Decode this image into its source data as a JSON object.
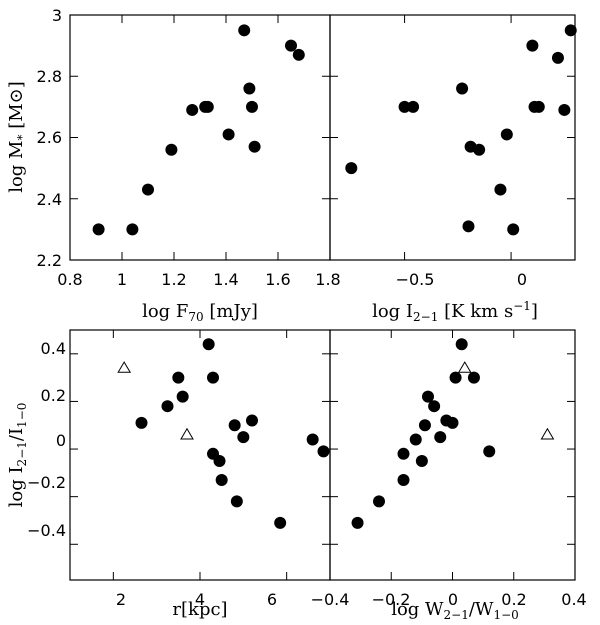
{
  "chart_data": [
    {
      "type": "scatter",
      "xlim": [
        0.8,
        1.8
      ],
      "ylim": [
        2.2,
        3.0
      ],
      "xticks": [
        "0.8",
        "1",
        "1.2",
        "1.4",
        "1.6",
        "1.8"
      ],
      "yticks": [
        "2.2",
        "2.4",
        "2.6",
        "2.8",
        "3"
      ],
      "xlabel": "log F70 [mJy]",
      "ylabel": "log M* [M⊙]",
      "series": [
        {
          "marker": "filled-circle",
          "points": [
            [
              0.91,
              2.3
            ],
            [
              1.04,
              2.3
            ],
            [
              1.1,
              2.43
            ],
            [
              1.19,
              2.56
            ],
            [
              1.27,
              2.69
            ],
            [
              1.32,
              2.7
            ],
            [
              1.33,
              2.7
            ],
            [
              1.41,
              2.61
            ],
            [
              1.47,
              2.95
            ],
            [
              1.49,
              2.76
            ],
            [
              1.5,
              2.7
            ],
            [
              1.51,
              2.57
            ],
            [
              1.65,
              2.9
            ],
            [
              1.68,
              2.87
            ]
          ]
        }
      ]
    },
    {
      "type": "scatter",
      "xlim": [
        -0.85,
        0.3
      ],
      "ylim": [
        2.2,
        3.0
      ],
      "xticks": [
        "−0.5",
        "0"
      ],
      "yticks": [],
      "xlabel": "log I2−1 [K km s−1]",
      "ylabel": "",
      "series": [
        {
          "marker": "filled-circle",
          "points": [
            [
              -0.75,
              2.5
            ],
            [
              -0.5,
              2.7
            ],
            [
              -0.46,
              2.7
            ],
            [
              -0.23,
              2.76
            ],
            [
              -0.19,
              2.57
            ],
            [
              -0.15,
              2.56
            ],
            [
              -0.2,
              2.31
            ],
            [
              -0.05,
              2.43
            ],
            [
              -0.02,
              2.61
            ],
            [
              0.01,
              2.3
            ],
            [
              0.1,
              2.9
            ],
            [
              0.11,
              2.7
            ],
            [
              0.13,
              2.7
            ],
            [
              0.22,
              2.86
            ],
            [
              0.25,
              2.69
            ],
            [
              0.28,
              2.95
            ]
          ]
        }
      ]
    },
    {
      "type": "scatter",
      "xlim": [
        1.0,
        7.0
      ],
      "ylim": [
        -0.55,
        0.5
      ],
      "xticks": [
        "2",
        "4",
        "6"
      ],
      "yticks": [
        "−0.4",
        "−0.2",
        "0",
        "0.2",
        "0.4"
      ],
      "xlabel": "r[kpc]",
      "ylabel": "log I2−1/I1−0",
      "series": [
        {
          "marker": "filled-circle",
          "points": [
            [
              2.65,
              0.11
            ],
            [
              3.25,
              0.18
            ],
            [
              3.5,
              0.3
            ],
            [
              3.6,
              0.22
            ],
            [
              4.2,
              0.44
            ],
            [
              4.3,
              0.3
            ],
            [
              4.3,
              -0.02
            ],
            [
              4.45,
              -0.05
            ],
            [
              4.5,
              -0.13
            ],
            [
              4.8,
              0.1
            ],
            [
              4.85,
              -0.22
            ],
            [
              5.0,
              0.05
            ],
            [
              5.2,
              0.12
            ],
            [
              5.85,
              -0.31
            ],
            [
              6.6,
              0.04
            ],
            [
              6.85,
              -0.01
            ]
          ]
        },
        {
          "marker": "open-triangle",
          "points": [
            [
              2.25,
              0.34
            ],
            [
              3.7,
              0.06
            ]
          ]
        }
      ]
    },
    {
      "type": "scatter",
      "xlim": [
        -0.4,
        0.4
      ],
      "ylim": [
        -0.55,
        0.5
      ],
      "xticks": [
        "−0.4",
        "−0.2",
        "0",
        "0.2",
        "0.4"
      ],
      "yticks": [],
      "xlabel": "log W2−1/W1−0",
      "ylabel": "",
      "series": [
        {
          "marker": "filled-circle",
          "points": [
            [
              -0.31,
              -0.31
            ],
            [
              -0.24,
              -0.22
            ],
            [
              -0.16,
              -0.02
            ],
            [
              -0.16,
              -0.13
            ],
            [
              -0.12,
              0.04
            ],
            [
              -0.1,
              -0.05
            ],
            [
              -0.09,
              0.1
            ],
            [
              -0.08,
              0.22
            ],
            [
              -0.06,
              0.18
            ],
            [
              -0.04,
              0.05
            ],
            [
              -0.02,
              0.12
            ],
            [
              0.0,
              0.11
            ],
            [
              0.01,
              0.3
            ],
            [
              0.03,
              0.44
            ],
            [
              0.07,
              0.3
            ],
            [
              0.12,
              -0.01
            ]
          ]
        },
        {
          "marker": "open-triangle",
          "points": [
            [
              0.04,
              0.34
            ],
            [
              0.31,
              0.06
            ]
          ]
        }
      ]
    }
  ]
}
